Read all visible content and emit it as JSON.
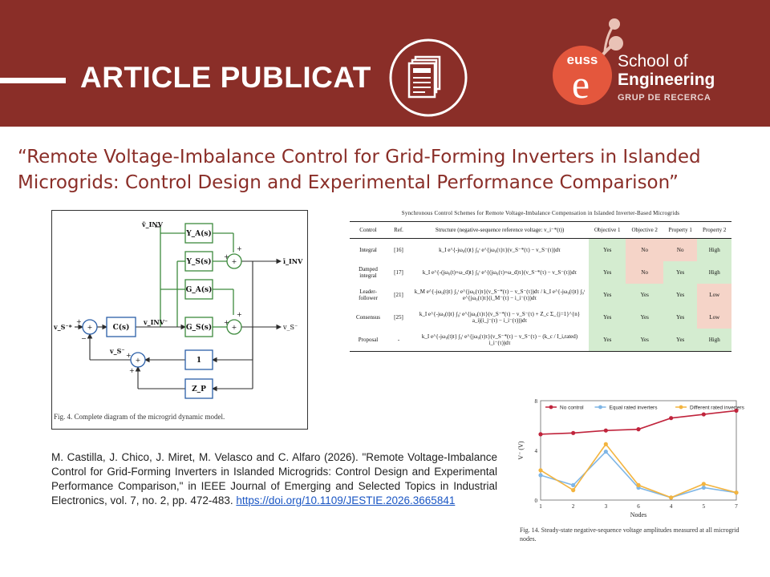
{
  "banner": {
    "title": "ARTICLE PUBLICAT",
    "logo_text": "euss",
    "logo_letter": "e",
    "school_line1": "School of",
    "school_line2": "Engineering",
    "school_line3": "GRUP DE RECERCA",
    "colors": {
      "banner": "#8a2e28",
      "logo": "#e4573d"
    }
  },
  "headline": "“Remote Voltage-Imbalance Control for Grid-Forming Inverters in Islanded Microgrids: Control Design and Experimental Performance Comparison”",
  "figure4": {
    "caption": "Fig. 4.    Complete diagram of the microgrid dynamic model.",
    "blocks": {
      "ya": "Y_A(s)",
      "ys": "Y_S(s)",
      "ga": "G_A(s)",
      "gs": "G_S(s)",
      "c": "C(s)",
      "one": "1",
      "zp": "Z_P"
    },
    "signals": {
      "vinv_top": "v̄_INV",
      "vinv": "v_INV⁻",
      "iinv": "ī_INV",
      "vs_ref": "v_S⁻*",
      "vs_out": "v_S⁻",
      "vs_fb": "v_S⁻"
    }
  },
  "table": {
    "title": "Synchronous Control Schemes for Remote Voltage-Imbalance Compensation in Islanded Inverter-Based Microgrids",
    "headers": [
      "Control",
      "Ref.",
      "Structure (negative-sequence reference voltage: v_i⁻*(t))",
      "Objective 1",
      "Objective 2",
      "Property 1",
      "Property 2"
    ],
    "rows": [
      {
        "control": "Integral",
        "ref": "[16]",
        "structure": "k_I e^{-jω₀(t)t} ∫₀ᵗ e^{jω₀(τ)τ}(v_S⁻*(τ) − v_S⁻(τ))dτ",
        "o1": "Yes",
        "o2": "No",
        "p1": "No",
        "p2": "High"
      },
      {
        "control": "Damped integral",
        "ref": "[17]",
        "structure": "k_I e^{-(jω₀(t)+ω_d)t} ∫₀ᵗ e^{(jω₀(τ)+ω_d)τ}(v_S⁻*(τ) − v_S⁻(τ))dτ",
        "o1": "Yes",
        "o2": "No",
        "p1": "Yes",
        "p2": "High"
      },
      {
        "control": "Leader-follower",
        "ref": "[21]",
        "structure": "k_M e^{-jω₀(t)t} ∫₀ᵗ e^{jω₀(τ)τ}(v_S⁻*(τ) − v_S⁻(τ))dτ  /  k_I e^{-jω₀(t)t} ∫₀ᵗ e^{jω₀(τ)τ}(i_M⁻(τ) − i_i⁻(τ))dτ",
        "o1": "Yes",
        "o2": "Yes",
        "p1": "Yes",
        "p2": "Low"
      },
      {
        "control": "Consensus",
        "ref": "[25]",
        "structure": "k_I e^{-jω₀(t)t} ∫₀ᵗ e^{jω₀(τ)τ}(v_S⁻*(τ) − v_S⁻(τ) + Z_c Σ_{j=1}^{n} a_ij(i_j⁻(τ) − i_i⁻(τ)))dτ",
        "o1": "Yes",
        "o2": "Yes",
        "p1": "Yes",
        "p2": "Low"
      },
      {
        "control": "Proposal",
        "ref": "-",
        "structure": "k_I e^{-jω₀(t)t} ∫₀ᵗ e^{jω₀(τ)τ}(v_S⁻*(τ) − v_S⁻(τ) − (k_c / I_i,rated) i_i⁻(τ))dτ",
        "o1": "Yes",
        "o2": "Yes",
        "p1": "Yes",
        "p2": "High"
      }
    ]
  },
  "citation": {
    "text": "M. Castilla, J. Chico, J. Miret, M. Velasco and C. Alfaro (2026). \"Remote Voltage-Imbalance Control for Grid-Forming Inverters in Islanded Microgrids: Control Design and Experimental Performance Comparison,\" in IEEE Journal of Emerging and Selected Topics in Industrial Electronics, vol. 7, no. 2, pp. 472-483. ",
    "link": "https://doi.org/10.1109/JESTIE.2026.3665841"
  },
  "chart_data": {
    "type": "line",
    "categories": [
      "1",
      "2",
      "3",
      "6",
      "4",
      "5",
      "7"
    ],
    "series": [
      {
        "name": "No control",
        "color": "#c0243c",
        "values": [
          5.3,
          5.4,
          5.6,
          5.7,
          6.6,
          6.9,
          7.2
        ]
      },
      {
        "name": "Equal rated inverters",
        "color": "#7fb6e6",
        "values": [
          2.0,
          1.2,
          3.9,
          1.0,
          0.2,
          1.0,
          0.6
        ]
      },
      {
        "name": "Different rated inverters",
        "color": "#f3b43f",
        "values": [
          2.4,
          0.8,
          4.5,
          1.2,
          0.2,
          1.3,
          0.6
        ]
      }
    ],
    "xlabel": "Nodes",
    "ylabel": "V⁻ (V)",
    "ylim": [
      0,
      8
    ],
    "yticks": [
      "0",
      "4",
      "8"
    ],
    "legend": "top",
    "caption": "Fig. 14.    Steady-state negative-sequence voltage amplitudes measured at all microgrid nodes."
  }
}
